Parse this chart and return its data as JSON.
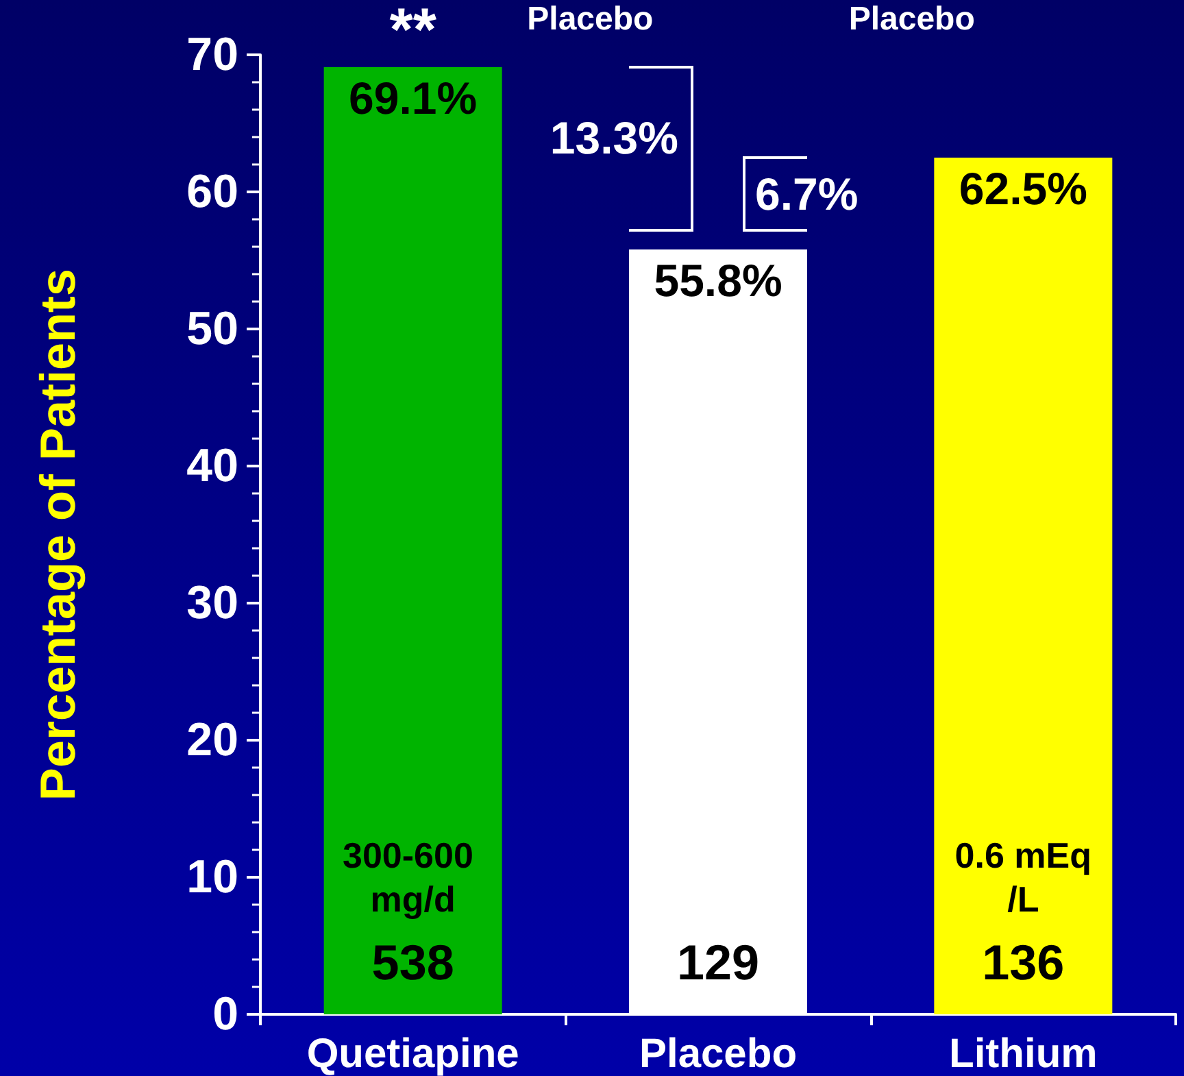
{
  "chart_data": {
    "type": "bar",
    "ylabel": "Percentage of Patients",
    "categories": [
      "Quetiapine",
      "Placebo",
      "Lithium"
    ],
    "values": [
      69.1,
      55.8,
      62.5
    ],
    "colors": [
      "#00b400",
      "#ffffff",
      "#ffff00"
    ],
    "value_labels": [
      "69.1%",
      "55.8%",
      "62.5%"
    ],
    "ylim": [
      0,
      70
    ],
    "yticks": [
      0,
      10,
      20,
      30,
      40,
      50,
      60,
      70
    ],
    "grid": false,
    "annotations": [
      "**",
      "Placebo",
      "Placebo",
      "13.3%",
      "6.7%",
      "300-600 mg/d",
      "538",
      "129",
      "0.6 mEq/L",
      "136"
    ]
  }
}
